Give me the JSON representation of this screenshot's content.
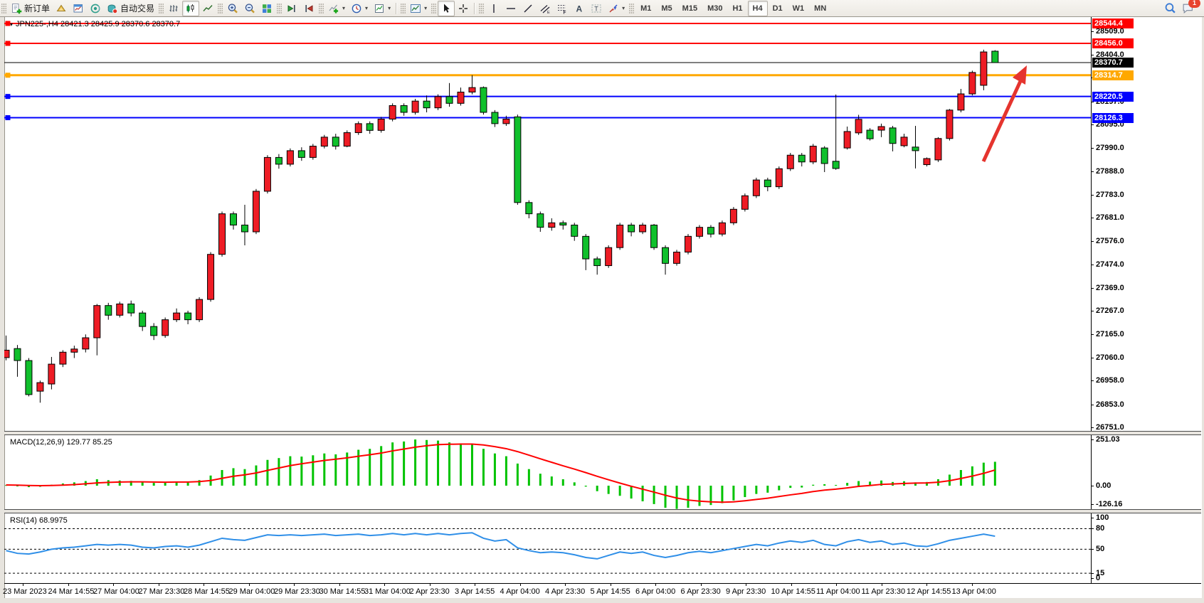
{
  "toolbar": {
    "groups": [
      {
        "items": [
          {
            "name": "new-order-icon",
            "label": "新订单"
          },
          {
            "name": "profiles-icon"
          },
          {
            "name": "market-watch-icon"
          },
          {
            "name": "data-window-icon"
          },
          {
            "name": "algo-trading-icon",
            "label": "自动交易"
          }
        ]
      },
      {
        "items": [
          {
            "name": "bar-chart-icon"
          },
          {
            "name": "candlestick-chart-icon",
            "active": true
          },
          {
            "name": "line-chart-icon"
          }
        ]
      },
      {
        "items": [
          {
            "name": "zoom-in-icon"
          },
          {
            "name": "zoom-out-icon"
          },
          {
            "name": "tile-windows-icon"
          }
        ]
      },
      {
        "items": [
          {
            "name": "auto-scroll-icon"
          },
          {
            "name": "chart-shift-icon"
          }
        ]
      },
      {
        "items": [
          {
            "name": "indicators-icon",
            "dropdown": true
          },
          {
            "name": "periods-icon",
            "dropdown": true
          },
          {
            "name": "templates-icon",
            "dropdown": true
          }
        ]
      },
      {
        "items": [
          {
            "name": "chart-window-icon",
            "dropdown": true
          }
        ]
      },
      {
        "items": [
          {
            "name": "cursor-icon",
            "active": true
          },
          {
            "name": "crosshair-icon"
          }
        ]
      },
      {
        "items": [
          {
            "name": "vertical-line-icon"
          },
          {
            "name": "horizontal-line-icon"
          },
          {
            "name": "trendline-icon"
          },
          {
            "name": "channel-icon"
          },
          {
            "name": "fibonacci-icon"
          },
          {
            "name": "text-icon"
          },
          {
            "name": "text-label-icon"
          },
          {
            "name": "arrows-icon",
            "dropdown": true
          }
        ]
      }
    ],
    "timeframes": {
      "options": [
        "M1",
        "M5",
        "M15",
        "M30",
        "H1",
        "H4",
        "D1",
        "W1",
        "MN"
      ],
      "active": "H4"
    },
    "right": [
      {
        "name": "search-icon"
      },
      {
        "name": "notifications-icon",
        "badge": "1"
      }
    ]
  },
  "chart_data": {
    "type": "candlestick",
    "title": "JPN225-,H4 28421.3 28425.9 28370.6 28370.7",
    "symbol": "JPN225-",
    "timeframe": "H4",
    "last_bar": {
      "open": 28421.3,
      "high": 28425.9,
      "low": 28370.6,
      "close": 28370.7
    },
    "bid": 28370.7,
    "bid_label": "28370.7",
    "price_axis_ticks": [
      "28509.0",
      "28404.0",
      "28302.0",
      "28197.0",
      "28095.0",
      "27990.0",
      "27888.0",
      "27783.0",
      "27681.0",
      "27576.0",
      "27474.0",
      "27369.0",
      "27267.0",
      "27165.0",
      "27060.0",
      "26958.0",
      "26853.0",
      "26751.0"
    ],
    "hlines": [
      {
        "price": 28544.4,
        "label": "28544.4",
        "color_key": "level_red",
        "thickness": 2
      },
      {
        "price": 28456.0,
        "label": "28456.0",
        "color_key": "level_red",
        "thickness": 2
      },
      {
        "price": 28314.7,
        "label": "28314.7",
        "color_key": "level_orange",
        "thickness": 3
      },
      {
        "price": 28220.5,
        "label": "28220.5",
        "color_key": "level_blue",
        "thickness": 2
      },
      {
        "price": 28126.3,
        "label": "28126.3",
        "color_key": "level_blue",
        "thickness": 2
      }
    ],
    "time_labels": [
      "23 Mar 2023",
      "24 Mar 14:55",
      "27 Mar 04:00",
      "27 Mar 23:30",
      "28 Mar 14:55",
      "29 Mar 04:00",
      "29 Mar 23:30",
      "30 Mar 14:55",
      "31 Mar 04:00",
      "2 Apr 23:30",
      "3 Apr 14:55",
      "4 Apr 04:00",
      "4 Apr 23:30",
      "5 Apr 14:55",
      "6 Apr 04:00",
      "6 Apr 23:30",
      "9 Apr 23:30",
      "10 Apr 14:55",
      "11 Apr 04:00",
      "11 Apr 23:30",
      "12 Apr 14:55",
      "13 Apr 04:00"
    ],
    "candles_ohlc": [
      [
        27062,
        27160,
        27050,
        27095
      ],
      [
        27102,
        27118,
        26977,
        27049
      ],
      [
        27049,
        27060,
        26890,
        26898
      ],
      [
        26913,
        26960,
        26862,
        26951
      ],
      [
        26945,
        27065,
        26921,
        27033
      ],
      [
        27033,
        27095,
        27020,
        27086
      ],
      [
        27086,
        27115,
        27060,
        27100
      ],
      [
        27100,
        27165,
        27085,
        27150
      ],
      [
        27150,
        27300,
        27072,
        27293
      ],
      [
        27293,
        27305,
        27230,
        27250
      ],
      [
        27250,
        27310,
        27240,
        27300
      ],
      [
        27300,
        27315,
        27245,
        27260
      ],
      [
        27260,
        27270,
        27180,
        27200
      ],
      [
        27200,
        27215,
        27140,
        27160
      ],
      [
        27160,
        27240,
        27150,
        27230
      ],
      [
        27230,
        27280,
        27220,
        27260
      ],
      [
        27260,
        27270,
        27210,
        27230
      ],
      [
        27230,
        27330,
        27220,
        27320
      ],
      [
        27320,
        27530,
        27310,
        27520
      ],
      [
        27520,
        27710,
        27510,
        27700
      ],
      [
        27700,
        27710,
        27630,
        27650
      ],
      [
        27650,
        27740,
        27560,
        27620
      ],
      [
        27620,
        27810,
        27610,
        27800
      ],
      [
        27800,
        27960,
        27790,
        27950
      ],
      [
        27950,
        27965,
        27900,
        27920
      ],
      [
        27920,
        27990,
        27910,
        27980
      ],
      [
        27980,
        27995,
        27935,
        27950
      ],
      [
        27950,
        28010,
        27940,
        28000
      ],
      [
        28000,
        28050,
        27990,
        28040
      ],
      [
        28040,
        28055,
        27985,
        28000
      ],
      [
        28000,
        28070,
        27995,
        28060
      ],
      [
        28060,
        28110,
        28050,
        28100
      ],
      [
        28100,
        28110,
        28055,
        28070
      ],
      [
        28070,
        28130,
        28060,
        28120
      ],
      [
        28120,
        28190,
        28110,
        28180
      ],
      [
        28180,
        28190,
        28135,
        28150
      ],
      [
        28150,
        28210,
        28140,
        28200
      ],
      [
        28200,
        28225,
        28150,
        28170
      ],
      [
        28170,
        28230,
        28160,
        28220
      ],
      [
        28220,
        28280,
        28175,
        28190
      ],
      [
        28190,
        28260,
        28180,
        28240
      ],
      [
        28240,
        28315,
        28230,
        28260
      ],
      [
        28260,
        28265,
        28140,
        28150
      ],
      [
        28150,
        28160,
        28085,
        28100
      ],
      [
        28100,
        28135,
        28090,
        28120
      ],
      [
        28130,
        28140,
        27740,
        27750
      ],
      [
        27750,
        27760,
        27680,
        27700
      ],
      [
        27700,
        27710,
        27620,
        27640
      ],
      [
        27640,
        27680,
        27625,
        27660
      ],
      [
        27660,
        27670,
        27630,
        27650
      ],
      [
        27650,
        27660,
        27580,
        27600
      ],
      [
        27600,
        27610,
        27450,
        27500
      ],
      [
        27500,
        27510,
        27430,
        27470
      ],
      [
        27470,
        27560,
        27460,
        27550
      ],
      [
        27550,
        27660,
        27540,
        27650
      ],
      [
        27650,
        27660,
        27600,
        27620
      ],
      [
        27620,
        27660,
        27610,
        27650
      ],
      [
        27650,
        27655,
        27540,
        27550
      ],
      [
        27550,
        27560,
        27430,
        27480
      ],
      [
        27480,
        27540,
        27470,
        27530
      ],
      [
        27530,
        27610,
        27520,
        27600
      ],
      [
        27600,
        27650,
        27590,
        27640
      ],
      [
        27640,
        27650,
        27595,
        27610
      ],
      [
        27610,
        27670,
        27600,
        27660
      ],
      [
        27660,
        27730,
        27650,
        27720
      ],
      [
        27720,
        27790,
        27710,
        27780
      ],
      [
        27780,
        27860,
        27770,
        27850
      ],
      [
        27850,
        27860,
        27800,
        27820
      ],
      [
        27820,
        27910,
        27810,
        27900
      ],
      [
        27900,
        27970,
        27890,
        27960
      ],
      [
        27960,
        27970,
        27910,
        27930
      ],
      [
        27930,
        28010,
        27920,
        28000
      ],
      [
        27992,
        28000,
        27885,
        27923
      ],
      [
        27933,
        28229,
        27895,
        27901
      ],
      [
        27992,
        28087,
        27985,
        28065
      ],
      [
        28059,
        28139,
        28050,
        28119
      ],
      [
        28071,
        28080,
        28025,
        28033
      ],
      [
        28071,
        28100,
        28040,
        28087
      ],
      [
        28081,
        28090,
        27977,
        28012
      ],
      [
        28002,
        28055,
        27995,
        28040
      ],
      [
        27996,
        28090,
        27901,
        27980
      ],
      [
        27918,
        27950,
        27910,
        27945
      ],
      [
        27939,
        28040,
        27930,
        28034
      ],
      [
        28034,
        28165,
        28025,
        28160
      ],
      [
        28160,
        28254,
        28150,
        28232
      ],
      [
        28232,
        28335,
        28225,
        28327
      ],
      [
        28270,
        28428,
        28248,
        28418
      ],
      [
        28421.3,
        28425.9,
        28370.6,
        28370.7
      ]
    ],
    "macd": {
      "label": "MACD(12,26,9) 129.77 85.25",
      "params": "12,26,9",
      "macd_value": 129.77,
      "signal_value": 85.25,
      "axis_labels": [
        "251.03",
        "0.00",
        "-126.16"
      ],
      "axis_max": 251.03,
      "axis_min": -126.16,
      "histogram": [
        3,
        -2,
        -8,
        -6,
        5,
        12,
        18,
        25,
        35,
        30,
        28,
        26,
        20,
        15,
        18,
        22,
        20,
        30,
        55,
        85,
        95,
        90,
        110,
        140,
        150,
        160,
        158,
        165,
        175,
        170,
        180,
        195,
        200,
        215,
        235,
        240,
        251,
        248,
        245,
        235,
        230,
        225,
        200,
        175,
        160,
        120,
        90,
        65,
        50,
        35,
        18,
        -5,
        -30,
        -45,
        -55,
        -70,
        -85,
        -100,
        -120,
        -126,
        -120,
        -110,
        -105,
        -95,
        -80,
        -62,
        -45,
        -38,
        -25,
        -12,
        -10,
        5,
        8,
        4,
        15,
        25,
        22,
        28,
        20,
        24,
        18,
        20,
        35,
        60,
        85,
        105,
        125,
        129.77
      ],
      "signal": [
        4,
        3,
        1,
        0,
        1,
        3,
        6,
        10,
        15,
        18,
        20,
        21,
        21,
        20,
        19,
        20,
        20,
        22,
        28,
        40,
        51,
        59,
        69,
        83,
        96,
        109,
        119,
        128,
        137,
        144,
        151,
        160,
        168,
        177,
        189,
        199,
        209,
        217,
        223,
        225,
        226,
        226,
        221,
        212,
        201,
        185,
        166,
        146,
        127,
        108,
        90,
        71,
        51,
        32,
        14,
        -3,
        -19,
        -35,
        -52,
        -67,
        -78,
        -84,
        -88,
        -90,
        -88,
        -82,
        -75,
        -68,
        -59,
        -50,
        -42,
        -32,
        -24,
        -19,
        -12,
        -4,
        1,
        7,
        9,
        12,
        14,
        15,
        19,
        27,
        39,
        52,
        67,
        85.25
      ]
    },
    "rsi": {
      "label": "RSI(14) 68.9975",
      "period": 14,
      "value": 68.9975,
      "levels": [
        80,
        50,
        15
      ],
      "axis_labels": [
        "100",
        "80",
        "50",
        "15",
        "0"
      ],
      "values": [
        48,
        44,
        43,
        46,
        50,
        52,
        53,
        55,
        57,
        56,
        57,
        56,
        53,
        52,
        54,
        55,
        53,
        56,
        61,
        66,
        64,
        63,
        67,
        71,
        70,
        71,
        70,
        71,
        72,
        70,
        71,
        72,
        70,
        71,
        73,
        71,
        73,
        71,
        73,
        71,
        73,
        74,
        66,
        62,
        64,
        52,
        48,
        45,
        46,
        45,
        42,
        38,
        36,
        41,
        46,
        44,
        46,
        41,
        38,
        41,
        45,
        47,
        45,
        48,
        51,
        54,
        57,
        55,
        59,
        62,
        60,
        63,
        57,
        55,
        61,
        64,
        60,
        62,
        57,
        59,
        55,
        54,
        58,
        63,
        66,
        69,
        72,
        68.9975
      ]
    },
    "annotation": {
      "shape": "up-arrow",
      "meaning": "bullish breakout arrow"
    }
  },
  "colors": {
    "bull": "#ee1c25",
    "bear": "#10c02c",
    "wick": "#000000",
    "macd_histogram": "#00c300",
    "macd_signal": "#ff0000",
    "rsi_line": "#2f8fe8",
    "level_red": "#fe0000",
    "level_orange": "#ffa800",
    "level_blue": "#0000fe",
    "bid_line": "#000000",
    "bid_badge_bg": "#000000",
    "badge_text": "#ffffff",
    "arrow": "#e5342e"
  }
}
